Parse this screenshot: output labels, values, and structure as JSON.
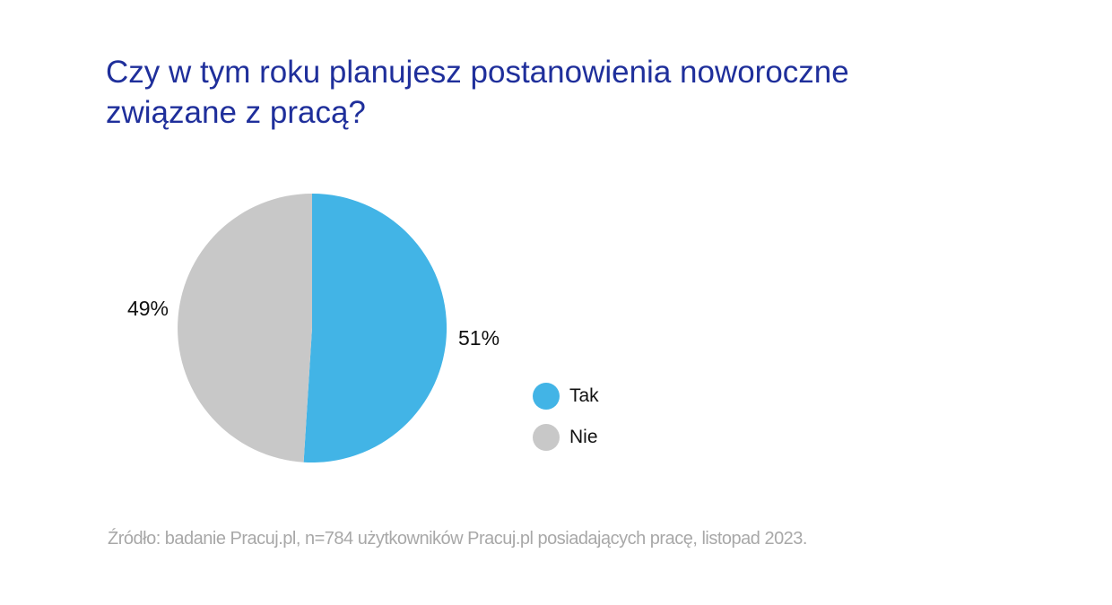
{
  "title": "Czy w tym roku planujesz postanowienia noworoczne związane z pracą?",
  "source": "Źródło: badanie Pracuj.pl, n=784 użytkowników Pracuj.pl posiadających pracę, listopad 2023.",
  "chart_data": {
    "type": "pie",
    "title": "Czy w tym roku planujesz postanowienia noworoczne związane z pracą?",
    "slices": [
      {
        "label": "Tak",
        "value": 51,
        "display": "51%",
        "color": "#42b4e6"
      },
      {
        "label": "Nie",
        "value": 49,
        "display": "49%",
        "color": "#c8c8c8"
      }
    ],
    "legend_position": "right"
  }
}
